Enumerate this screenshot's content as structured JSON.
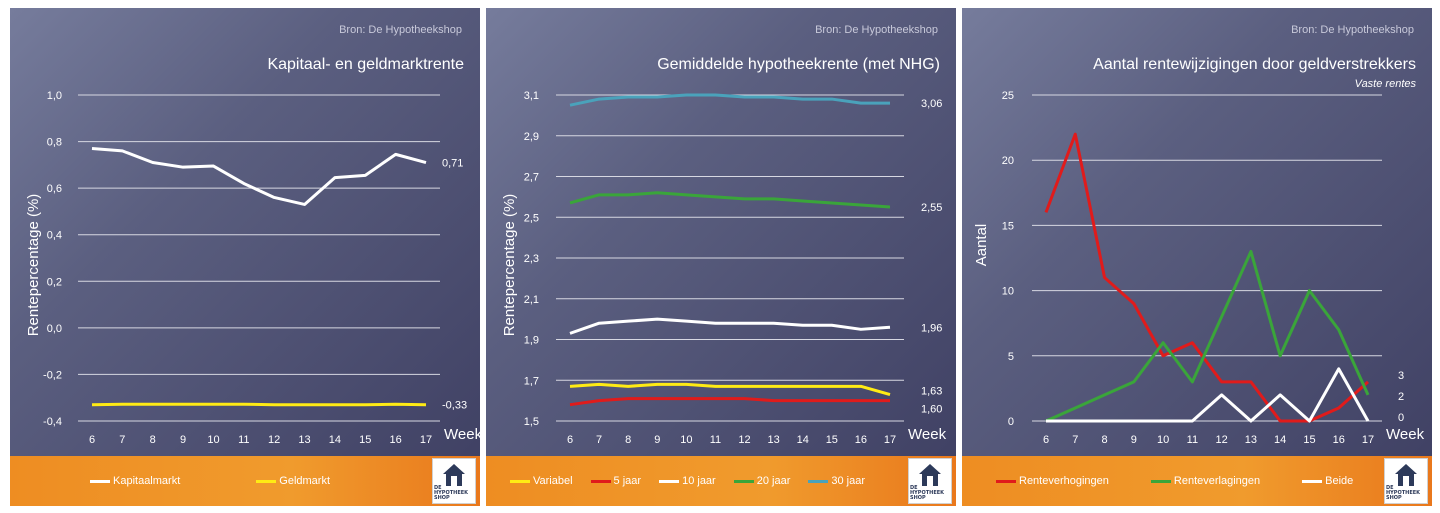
{
  "colors": {
    "white": "#ffffff",
    "yellow": "#ffeb14",
    "red": "#e01b1b",
    "green": "#3aa53a",
    "teal": "#4aa2bb",
    "grid": "#d7d8e2"
  },
  "logo": {
    "text": "DE\nHYPOTHEEK\nSHOP",
    "icon": "house-icon"
  },
  "chart_data": [
    {
      "type": "line",
      "source": "Bron: De Hypotheekshop",
      "title": "Kapitaal- en geldmarktrente",
      "subtitle": "",
      "xlabel": "Week",
      "ylabel": "Rentepercentage (%)",
      "x": [
        "6",
        "7",
        "8",
        "9",
        "10",
        "11",
        "12",
        "13",
        "14",
        "15",
        "16",
        "17"
      ],
      "ylim": [
        -0.4,
        1.0
      ],
      "yticks": [
        "1,0",
        "0,8",
        "0,6",
        "0,4",
        "0,2",
        "0,0",
        "-0,2",
        "-0,4"
      ],
      "ytick_values": [
        1.0,
        0.8,
        0.6,
        0.4,
        0.2,
        0.0,
        -0.2,
        -0.4
      ],
      "grid": true,
      "series": [
        {
          "name": "Kapitaalmarkt",
          "color": "#ffffff",
          "values": [
            0.77,
            0.76,
            0.71,
            0.69,
            0.695,
            0.62,
            0.56,
            0.53,
            0.645,
            0.655,
            0.745,
            0.71
          ],
          "end_label": "0,71"
        },
        {
          "name": "Geldmarkt",
          "color": "#ffeb14",
          "values": [
            -0.33,
            -0.328,
            -0.328,
            -0.328,
            -0.328,
            -0.328,
            -0.33,
            -0.33,
            -0.33,
            -0.33,
            -0.328,
            -0.33
          ],
          "end_label": "-0,33"
        }
      ]
    },
    {
      "type": "line",
      "source": "Bron: De Hypotheekshop",
      "title": "Gemiddelde hypotheekrente (met NHG)",
      "subtitle": "",
      "xlabel": "Week",
      "ylabel": "Rentepercentage (%)",
      "x": [
        "6",
        "7",
        "8",
        "9",
        "10",
        "11",
        "12",
        "13",
        "14",
        "15",
        "16",
        "17"
      ],
      "ylim": [
        1.5,
        3.1
      ],
      "yticks": [
        "3,1",
        "2,9",
        "2,7",
        "2,5",
        "2,3",
        "2,1",
        "1,9",
        "1,7",
        "1,5"
      ],
      "ytick_values": [
        3.1,
        2.9,
        2.7,
        2.5,
        2.3,
        2.1,
        1.9,
        1.7,
        1.5
      ],
      "grid": true,
      "series": [
        {
          "name": "Variabel",
          "color": "#ffeb14",
          "values": [
            1.67,
            1.68,
            1.67,
            1.68,
            1.68,
            1.67,
            1.67,
            1.67,
            1.67,
            1.67,
            1.67,
            1.63
          ],
          "end_label": "1,63"
        },
        {
          "name": "5 jaar",
          "color": "#e01b1b",
          "values": [
            1.58,
            1.6,
            1.61,
            1.61,
            1.61,
            1.61,
            1.61,
            1.6,
            1.6,
            1.6,
            1.6,
            1.6
          ],
          "end_label": "1,60"
        },
        {
          "name": "10 jaar",
          "color": "#ffffff",
          "values": [
            1.93,
            1.98,
            1.99,
            2.0,
            1.99,
            1.98,
            1.98,
            1.98,
            1.97,
            1.97,
            1.95,
            1.96
          ],
          "end_label": "1,96"
        },
        {
          "name": "20 jaar",
          "color": "#3aa53a",
          "values": [
            2.57,
            2.61,
            2.61,
            2.62,
            2.61,
            2.6,
            2.59,
            2.59,
            2.58,
            2.57,
            2.56,
            2.55
          ],
          "end_label": "2,55"
        },
        {
          "name": "30 jaar",
          "color": "#4aa2bb",
          "values": [
            3.05,
            3.08,
            3.09,
            3.09,
            3.1,
            3.1,
            3.09,
            3.09,
            3.08,
            3.08,
            3.06,
            3.06
          ],
          "end_label": "3,06"
        }
      ]
    },
    {
      "type": "line",
      "source": "Bron: De Hypotheekshop",
      "title": "Aantal rentewijzigingen door geldverstrekkers",
      "subtitle": "Vaste rentes",
      "xlabel": "Week",
      "ylabel": "Aantal",
      "x": [
        "6",
        "7",
        "8",
        "9",
        "10",
        "11",
        "12",
        "13",
        "14",
        "15",
        "16",
        "17"
      ],
      "ylim": [
        0,
        25
      ],
      "yticks": [
        "25",
        "20",
        "15",
        "10",
        "5",
        "0"
      ],
      "ytick_values": [
        25,
        20,
        15,
        10,
        5,
        0
      ],
      "grid": true,
      "series": [
        {
          "name": "Renteverhogingen",
          "color": "#e01b1b",
          "values": [
            16,
            22,
            11,
            9,
            5,
            6,
            3,
            3,
            0,
            0,
            1,
            3
          ],
          "end_label": "3"
        },
        {
          "name": "Renteverlagingen",
          "color": "#3aa53a",
          "values": [
            0,
            1,
            2,
            3,
            6,
            3,
            8,
            13,
            5,
            10,
            7,
            2
          ],
          "end_label": "2"
        },
        {
          "name": "Beide",
          "color": "#ffffff",
          "values": [
            0,
            0,
            0,
            0,
            0,
            0,
            2,
            0,
            2,
            0,
            4,
            0
          ],
          "end_label": "0"
        }
      ]
    }
  ]
}
